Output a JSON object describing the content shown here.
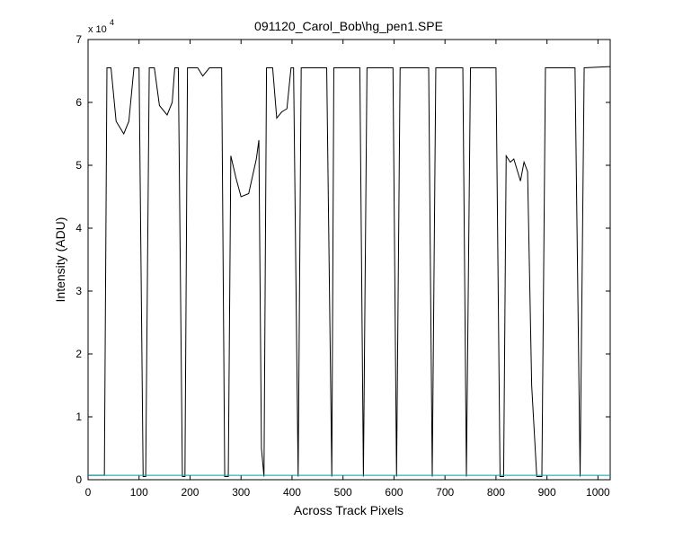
{
  "chart_data": {
    "type": "line",
    "title": "091120_Carol_Bob\\hg_pen1.SPE",
    "xlabel": "Across Track Pixels",
    "ylabel": "Intensity (ADU)",
    "y_multiplier": "x 10",
    "y_multiplier_exponent": "4",
    "xlim": [
      0,
      1024
    ],
    "ylim": [
      0,
      7
    ],
    "xticks": [
      0,
      100,
      200,
      300,
      400,
      500,
      600,
      700,
      800,
      900,
      1000
    ],
    "yticks": [
      0,
      1,
      2,
      3,
      4,
      5,
      6,
      7
    ],
    "grid": false,
    "series": [
      {
        "color": "#000000",
        "x": [
          0,
          32,
          37,
          45,
          55,
          70,
          80,
          90,
          100,
          108,
          113,
          120,
          130,
          140,
          155,
          165,
          170,
          177,
          185,
          190,
          195,
          215,
          225,
          238,
          262,
          268,
          275,
          280,
          290,
          300,
          315,
          330,
          335,
          340,
          345,
          350,
          355,
          362,
          370,
          380,
          390,
          398,
          403,
          412,
          418,
          468,
          478,
          482,
          533,
          540,
          547,
          598,
          605,
          612,
          668,
          675,
          682,
          735,
          742,
          750,
          800,
          808,
          815,
          820,
          828,
          835,
          848,
          855,
          862,
          870,
          880,
          890,
          897,
          955,
          965,
          973,
          1024
        ],
        "values": [
          0.07,
          0.07,
          6.55,
          6.55,
          5.7,
          5.5,
          5.7,
          6.55,
          6.55,
          0.05,
          0.05,
          6.55,
          6.55,
          5.95,
          5.8,
          6.0,
          6.55,
          6.55,
          0.05,
          0.05,
          6.55,
          6.55,
          6.42,
          6.55,
          6.55,
          0.05,
          0.05,
          5.15,
          4.8,
          4.5,
          4.55,
          5.1,
          5.4,
          0.5,
          0.05,
          6.55,
          6.55,
          6.55,
          5.75,
          5.85,
          5.9,
          6.55,
          6.55,
          0.05,
          6.55,
          6.55,
          0.05,
          6.55,
          6.55,
          0.05,
          6.55,
          6.55,
          0.05,
          6.55,
          6.55,
          0.05,
          6.55,
          6.55,
          0.05,
          6.55,
          6.55,
          0.05,
          0.05,
          5.15,
          5.05,
          5.1,
          4.75,
          5.05,
          4.9,
          1.5,
          0.05,
          0.05,
          6.55,
          6.55,
          0.05,
          6.55,
          6.57
        ]
      },
      {
        "color": "#00a0a0",
        "x": [
          0,
          1024
        ],
        "values": [
          0.07,
          0.07
        ]
      }
    ]
  }
}
